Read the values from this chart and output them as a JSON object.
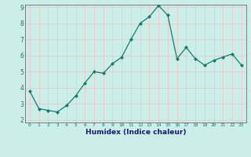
{
  "x": [
    0,
    1,
    2,
    3,
    4,
    5,
    6,
    7,
    8,
    9,
    10,
    11,
    12,
    13,
    14,
    15,
    16,
    17,
    18,
    19,
    20,
    21,
    22,
    23
  ],
  "y": [
    3.8,
    2.7,
    2.6,
    2.5,
    2.9,
    3.5,
    4.3,
    5.0,
    4.9,
    5.5,
    5.9,
    7.0,
    8.0,
    8.4,
    9.1,
    8.5,
    5.8,
    6.5,
    5.8,
    5.4,
    5.7,
    5.9,
    6.1,
    5.4
  ],
  "xlabel": "Humidex (Indice chaleur)",
  "ylim": [
    2,
    9
  ],
  "xlim": [
    -0.5,
    23.5
  ],
  "yticks": [
    2,
    3,
    4,
    5,
    6,
    7,
    8,
    9
  ],
  "xticks": [
    0,
    1,
    2,
    3,
    4,
    5,
    6,
    7,
    8,
    9,
    10,
    11,
    12,
    13,
    14,
    15,
    16,
    17,
    18,
    19,
    20,
    21,
    22,
    23
  ],
  "line_color": "#1a7a6e",
  "marker": "D",
  "marker_size": 2.0,
  "bg_color": "#cceee8",
  "grid_color": "#e8c8c8",
  "tick_color": "#1a7a6e",
  "xlabel_color": "#1a1a6e",
  "axis_bg": "#cceee8",
  "spine_color": "#555555"
}
